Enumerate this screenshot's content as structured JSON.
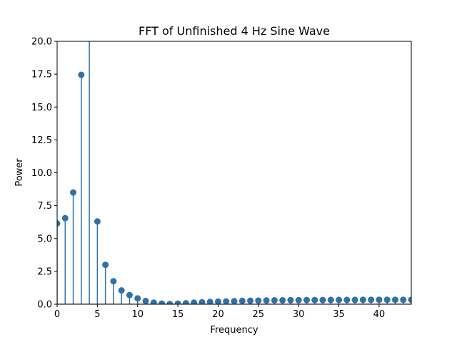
{
  "chart_data": {
    "type": "stem",
    "title": "FFT of Unfinished 4 Hz Sine Wave",
    "xlabel": "Frequency",
    "ylabel": "Power",
    "xlim": [
      0,
      44
    ],
    "ylim": [
      0,
      20
    ],
    "xticks": [
      0,
      5,
      10,
      15,
      20,
      25,
      30,
      35,
      40
    ],
    "yticks": [
      0.0,
      2.5,
      5.0,
      7.5,
      10.0,
      12.5,
      15.0,
      17.5,
      20.0
    ],
    "xtick_labels": [
      "0",
      "5",
      "10",
      "15",
      "20",
      "25",
      "30",
      "35",
      "40"
    ],
    "ytick_labels": [
      "0.0",
      "2.5",
      "5.0",
      "7.5",
      "10.0",
      "12.5",
      "15.0",
      "17.5",
      "20.0"
    ],
    "grid": false,
    "color": "#2f72a8",
    "baseline_color": "#d62728",
    "x": [
      0,
      1,
      2,
      3,
      4,
      5,
      6,
      7,
      8,
      9,
      10,
      11,
      12,
      13,
      14,
      15,
      16,
      17,
      18,
      19,
      20,
      21,
      22,
      23,
      24,
      25,
      26,
      27,
      28,
      29,
      30,
      31,
      32,
      33,
      34,
      35,
      36,
      37,
      38,
      39,
      40,
      41,
      42,
      43,
      44
    ],
    "values": [
      6.15,
      6.55,
      8.5,
      17.45,
      20.5,
      6.3,
      3.0,
      1.75,
      1.05,
      0.7,
      0.45,
      0.25,
      0.12,
      0.05,
      0.02,
      0.05,
      0.08,
      0.12,
      0.15,
      0.18,
      0.2,
      0.22,
      0.24,
      0.26,
      0.27,
      0.28,
      0.29,
      0.3,
      0.3,
      0.31,
      0.31,
      0.32,
      0.32,
      0.32,
      0.33,
      0.33,
      0.33,
      0.33,
      0.34,
      0.34,
      0.34,
      0.34,
      0.34,
      0.34,
      0.34
    ]
  }
}
